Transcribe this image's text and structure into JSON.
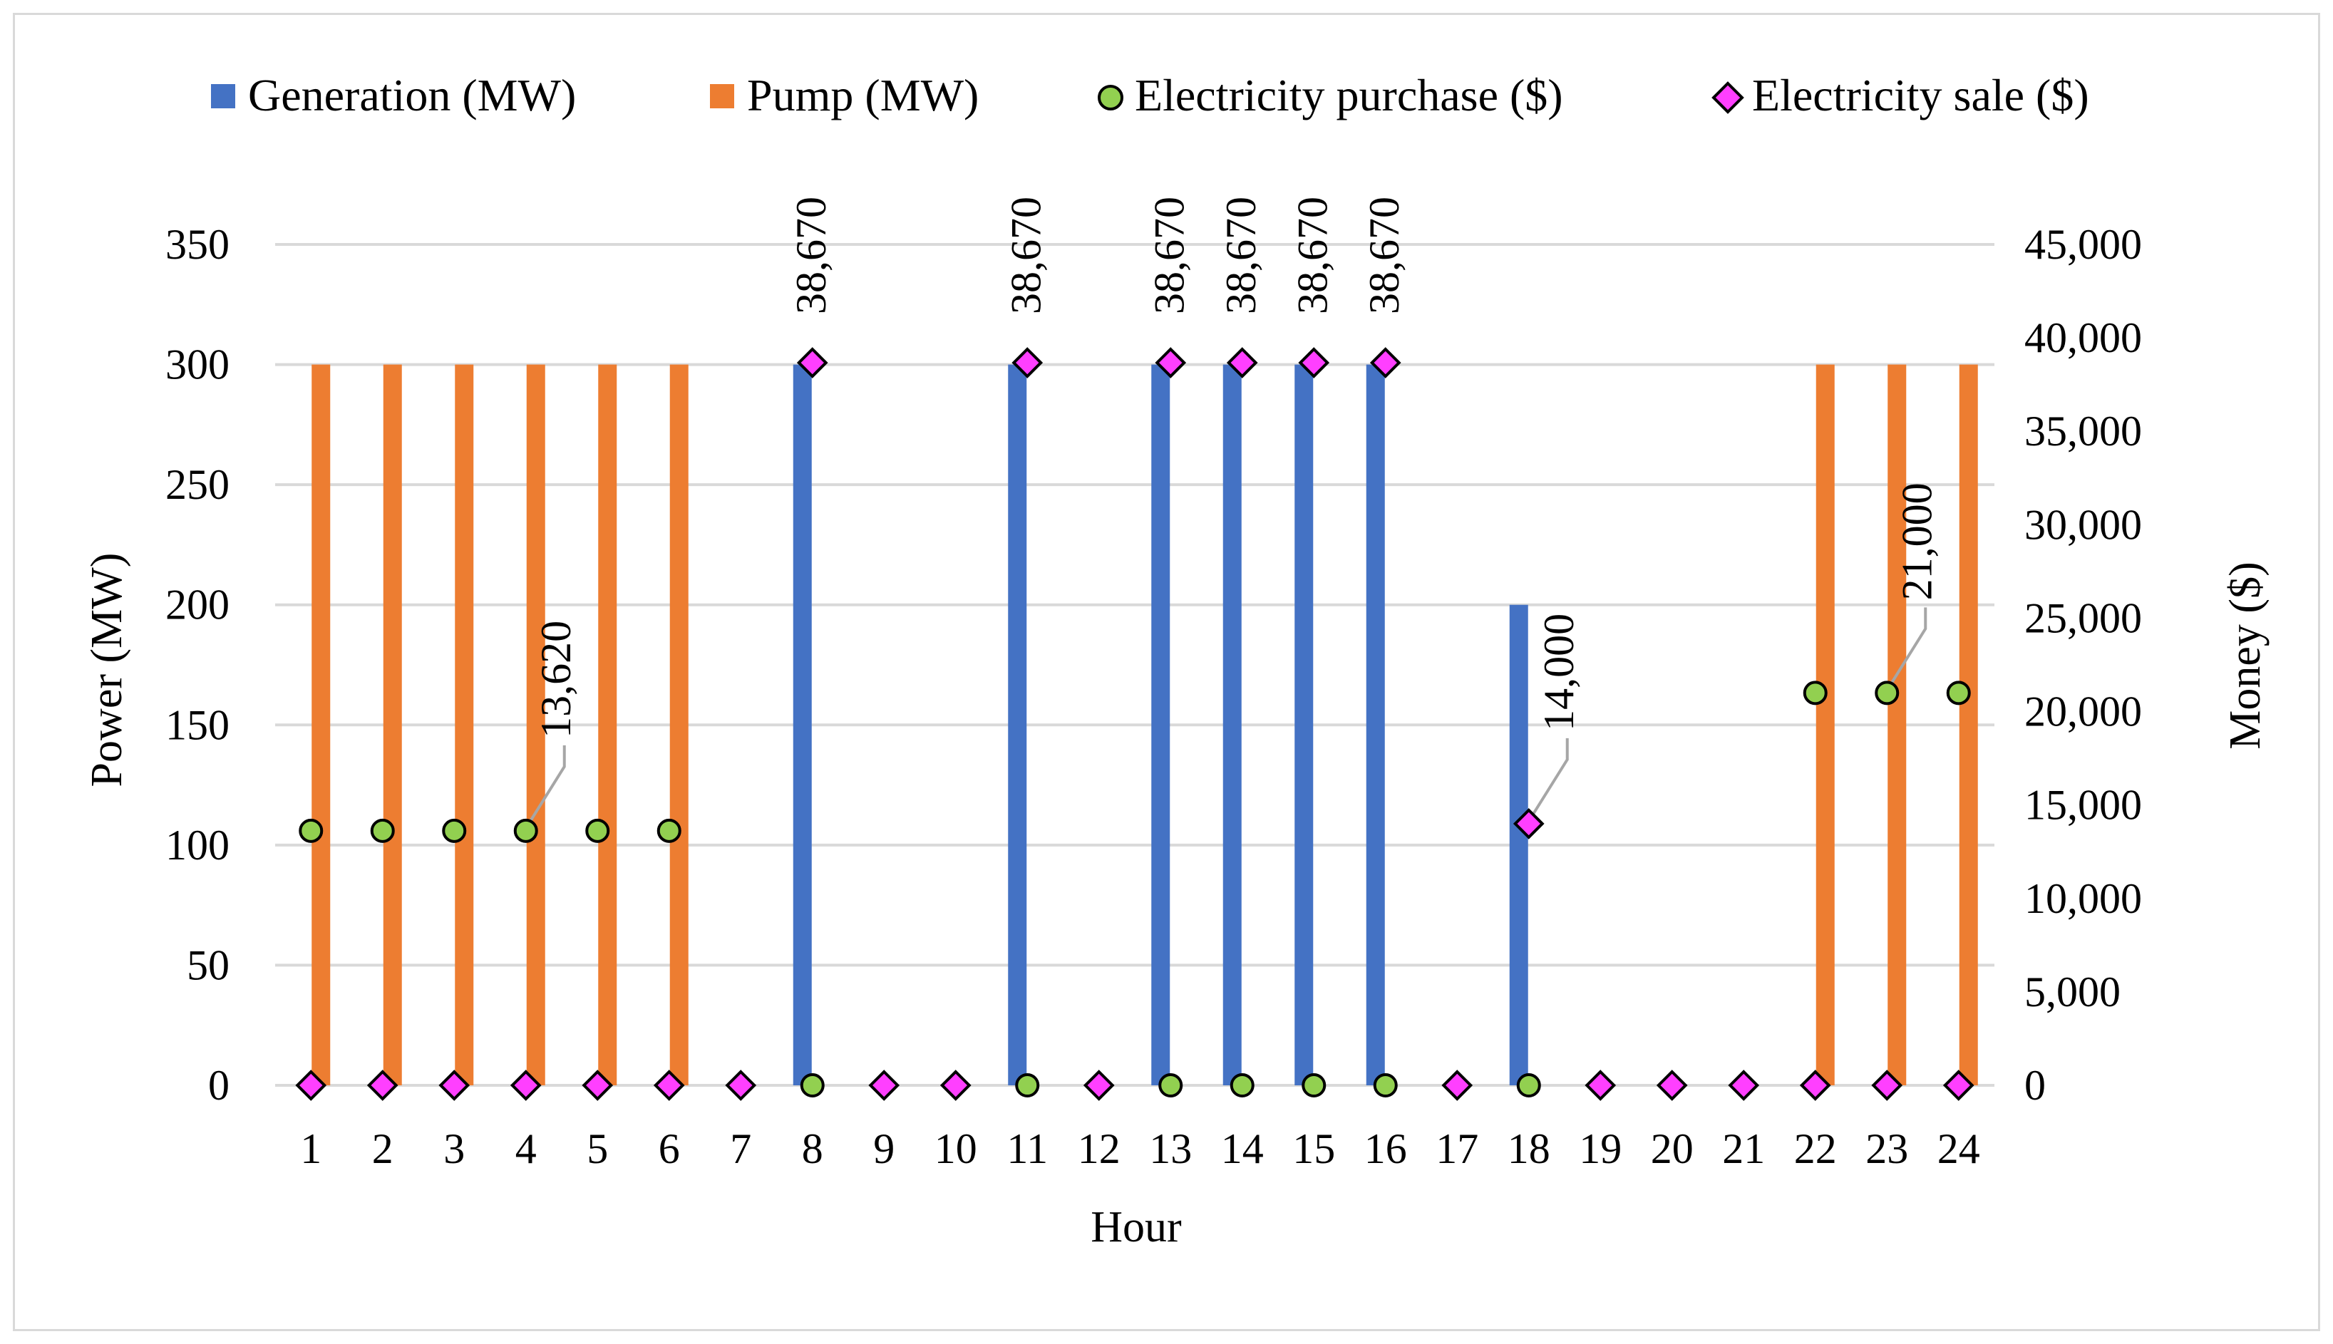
{
  "chart_data": {
    "type": "bar",
    "title": "",
    "xlabel": "Hour",
    "ylabel": "Power (MW)",
    "y2label": "Money ($)",
    "ylim": [
      0,
      350
    ],
    "y2lim": [
      0,
      45000
    ],
    "yticks": [
      "0",
      "50",
      "100",
      "150",
      "200",
      "250",
      "300",
      "350"
    ],
    "y2ticks": [
      "0",
      "5,000",
      "10,000",
      "15,000",
      "20,000",
      "25,000",
      "30,000",
      "35,000",
      "40,000",
      "45,000"
    ],
    "categories": [
      "1",
      "2",
      "3",
      "4",
      "5",
      "6",
      "7",
      "8",
      "9",
      "10",
      "11",
      "12",
      "13",
      "14",
      "15",
      "16",
      "17",
      "18",
      "19",
      "20",
      "21",
      "22",
      "23",
      "24"
    ],
    "grid": true,
    "legend_position": "top",
    "series": [
      {
        "name": "Generation (MW)",
        "kind": "bar",
        "axis": "left",
        "color": "#4472c4",
        "values": [
          0,
          0,
          0,
          0,
          0,
          0,
          0,
          300,
          0,
          0,
          300,
          0,
          300,
          300,
          300,
          300,
          0,
          200,
          0,
          0,
          0,
          0,
          0,
          0
        ]
      },
      {
        "name": "Pump (MW)",
        "kind": "bar",
        "axis": "left",
        "color": "#ed7d31",
        "values": [
          300,
          300,
          300,
          300,
          300,
          300,
          0,
          0,
          0,
          0,
          0,
          0,
          0,
          0,
          0,
          0,
          0,
          0,
          0,
          0,
          0,
          300,
          300,
          300
        ]
      },
      {
        "name": "Electricity purchase ($)",
        "kind": "marker-circle",
        "axis": "right",
        "color": "#92d050",
        "values": [
          13620,
          13620,
          13620,
          13620,
          13620,
          13620,
          null,
          0,
          null,
          null,
          0,
          null,
          0,
          0,
          0,
          0,
          null,
          0,
          null,
          null,
          null,
          21000,
          21000,
          21000
        ]
      },
      {
        "name": "Electricity sale ($)",
        "kind": "marker-diamond",
        "axis": "right",
        "color": "#ff3fff",
        "values": [
          0,
          0,
          0,
          0,
          0,
          0,
          0,
          38670,
          0,
          0,
          38670,
          0,
          38670,
          38670,
          38670,
          38670,
          0,
          14000,
          0,
          0,
          0,
          0,
          0,
          0
        ]
      }
    ],
    "annotations": [
      {
        "text": "13,620",
        "hour": 4,
        "value": 13620,
        "series": "Electricity purchase ($)",
        "leader": true
      },
      {
        "text": "38,670",
        "hour": 8,
        "value": 38670,
        "series": "Electricity sale ($)",
        "leader": false
      },
      {
        "text": "38,670",
        "hour": 11,
        "value": 38670,
        "series": "Electricity sale ($)",
        "leader": false
      },
      {
        "text": "38,670",
        "hour": 13,
        "value": 38670,
        "series": "Electricity sale ($)",
        "leader": false
      },
      {
        "text": "38,670",
        "hour": 14,
        "value": 38670,
        "series": "Electricity sale ($)",
        "leader": false
      },
      {
        "text": "38,670",
        "hour": 15,
        "value": 38670,
        "series": "Electricity sale ($)",
        "leader": false
      },
      {
        "text": "38,670",
        "hour": 16,
        "value": 38670,
        "series": "Electricity sale ($)",
        "leader": false
      },
      {
        "text": "14,000",
        "hour": 18,
        "value": 14000,
        "series": "Electricity sale ($)",
        "leader": true
      },
      {
        "text": "21,000",
        "hour": 23,
        "value": 21000,
        "series": "Electricity purchase ($)",
        "leader": true
      }
    ]
  }
}
